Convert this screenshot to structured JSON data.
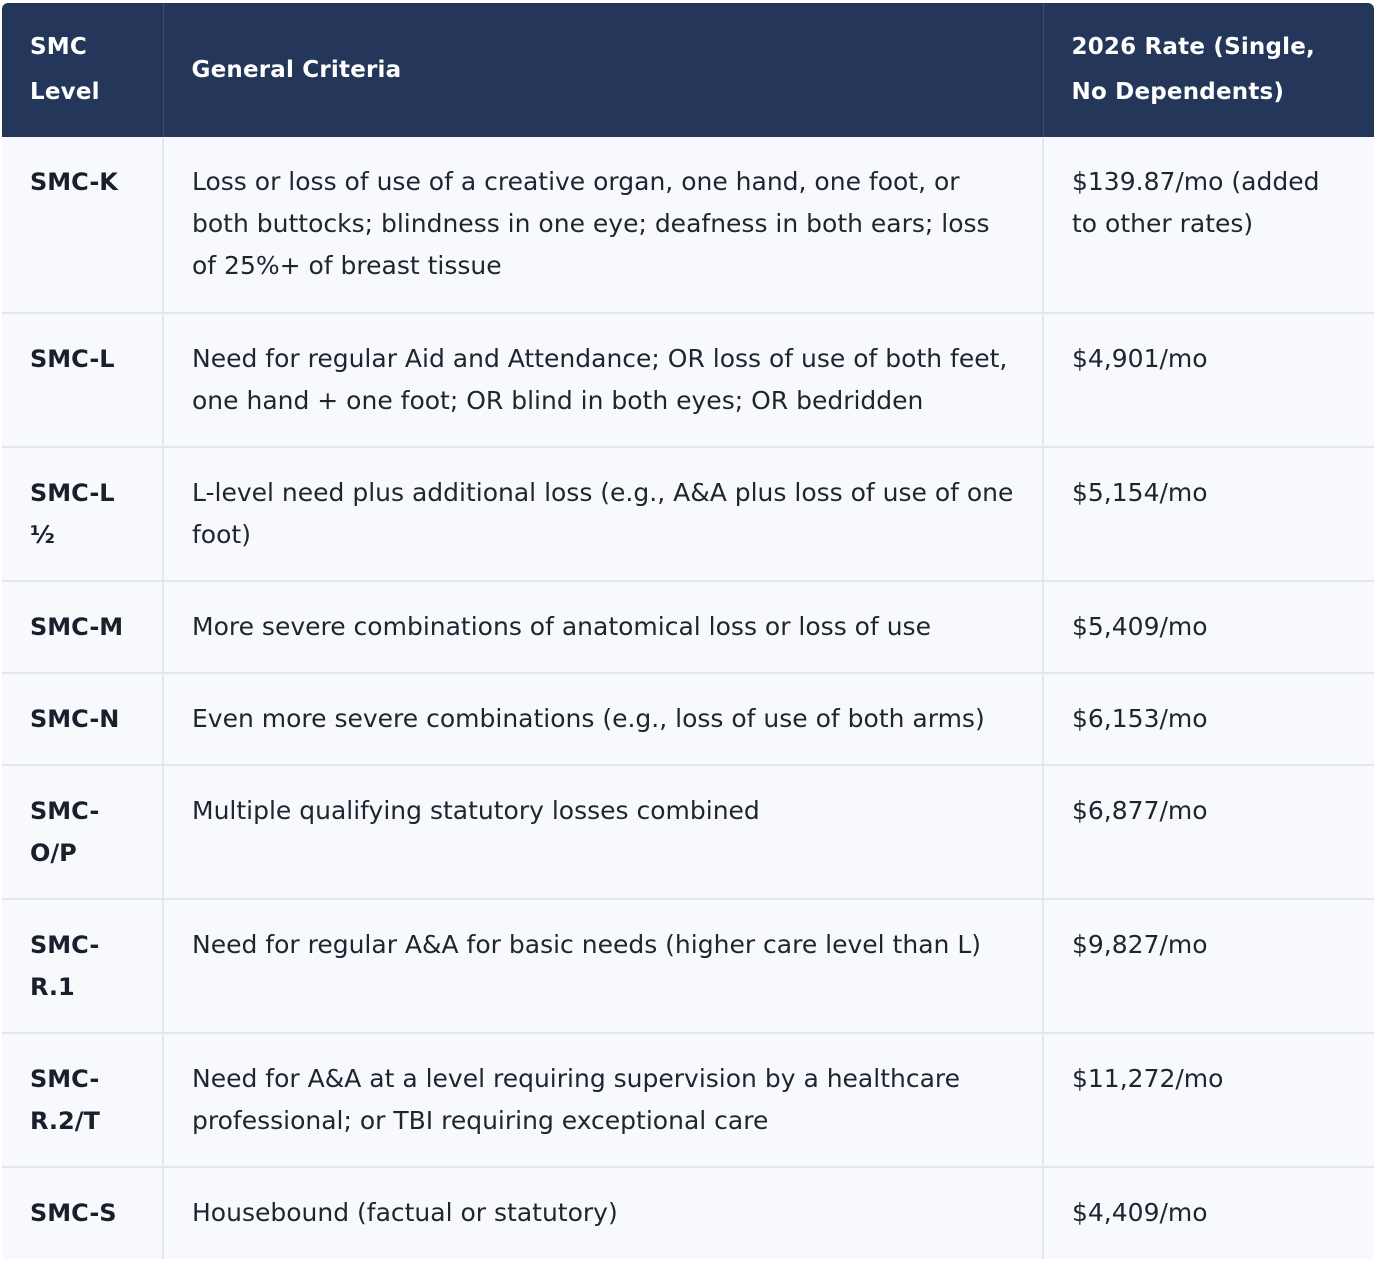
{
  "table": {
    "headers": {
      "level": "SMC Level",
      "criteria": "General Criteria",
      "rate": "2026 Rate (Single, No Dependents)"
    },
    "rows": [
      {
        "level": "SMC-K",
        "criteria": "Loss or loss of use of a creative organ, one hand, one foot, or both buttocks; blindness in one eye; deafness in both ears; loss of 25%+ of breast tissue",
        "rate": "$139.87/mo (added to other rates)"
      },
      {
        "level": "SMC-L",
        "criteria": "Need for regular Aid and Attendance; OR loss of use of both feet, one hand + one foot; OR blind in both eyes; OR bedridden",
        "rate": "$4,901/mo"
      },
      {
        "level": "SMC-L ½",
        "criteria": "L-level need plus additional loss (e.g., A&A plus loss of use of one foot)",
        "rate": "$5,154/mo"
      },
      {
        "level": "SMC-M",
        "criteria": "More severe combinations of anatomical loss or loss of use",
        "rate": "$5,409/mo"
      },
      {
        "level": "SMC-N",
        "criteria": "Even more severe combinations (e.g., loss of use of both arms)",
        "rate": "$6,153/mo"
      },
      {
        "level": "SMC-O/P",
        "criteria": "Multiple qualifying statutory losses combined",
        "rate": "$6,877/mo"
      },
      {
        "level": "SMC-R.1",
        "criteria": "Need for regular A&A for basic needs (higher care level than L)",
        "rate": "$9,827/mo"
      },
      {
        "level": "SMC-R.2/T",
        "criteria": "Need for A&A at a level requiring supervision by a healthcare professional; or TBI requiring exceptional care",
        "rate": "$11,272/mo"
      },
      {
        "level": "SMC-S",
        "criteria": "Housebound (factual or statutory)",
        "rate": "$4,409/mo"
      }
    ]
  }
}
